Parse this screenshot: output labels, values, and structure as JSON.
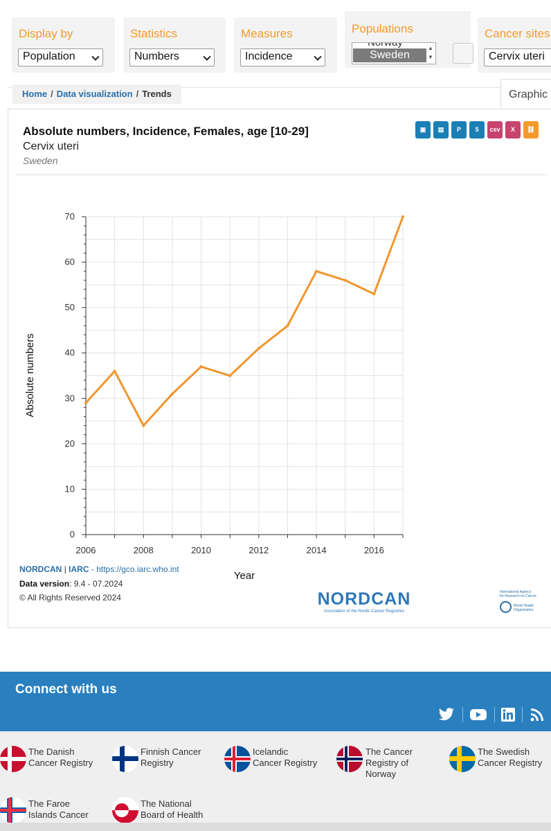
{
  "filters": {
    "display_by": {
      "label": "Display by",
      "value": "Population"
    },
    "statistics": {
      "label": "Statistics",
      "value": "Numbers"
    },
    "measures": {
      "label": "Measures",
      "value": "Incidence"
    },
    "populations": {
      "label": "Populations",
      "prev_option": "Norway",
      "selected": "Sweden"
    },
    "cancer_sites": {
      "label": "Cancer sites",
      "value": "Cervix uteri"
    }
  },
  "breadcrumb": {
    "home": "Home",
    "data_visualization": "Data visualization",
    "current": "Trends",
    "separator": "/"
  },
  "tab": {
    "label": "Graphic"
  },
  "export_icons": [
    {
      "name": "png-export-icon",
      "glyph": "▣",
      "color": "#1a7fb5"
    },
    {
      "name": "pdf-export-icon",
      "glyph": "▤",
      "color": "#1a7fb5"
    },
    {
      "name": "ppt-export-icon",
      "glyph": "P",
      "color": "#1a7fb5"
    },
    {
      "name": "html5-export-icon",
      "glyph": "5",
      "color": "#1a7fb5"
    },
    {
      "name": "csv-export-icon",
      "glyph": "csv",
      "color": "#c8446e"
    },
    {
      "name": "excel-export-icon",
      "glyph": "X",
      "color": "#c8446e"
    },
    {
      "name": "share-link-icon",
      "glyph": "⛓",
      "color": "#f39a2b"
    }
  ],
  "chart_data": {
    "type": "line",
    "title": "Absolute numbers, Incidence, Females, age [10-29]",
    "subtitle": "Cervix uteri",
    "population": "Sweden",
    "xlabel": "Year",
    "ylabel": "Absolute numbers",
    "xlim": [
      2006,
      2017
    ],
    "ylim": [
      0,
      70
    ],
    "x_ticks": [
      2006,
      2008,
      2010,
      2012,
      2014,
      2016
    ],
    "y_ticks": [
      0,
      10,
      20,
      30,
      40,
      50,
      60,
      70
    ],
    "grid": true,
    "legend": "none",
    "series": [
      {
        "color": "#f0962e",
        "x": [
          2006,
          2007,
          2008,
          2009,
          2010,
          2011,
          2012,
          2013,
          2014,
          2015,
          2016,
          2017
        ],
        "values": [
          29,
          36,
          24,
          31,
          37,
          35,
          41,
          46,
          58,
          56,
          53,
          70
        ]
      }
    ]
  },
  "credits": {
    "source_name": "NORDCAN",
    "separator": "|",
    "iarc": "IARC",
    "url_prefix": "-",
    "url": "https://gco.iarc.who.int",
    "version_label": "Data version",
    "version_value": ": 9.4 - 07.2024",
    "rights": "© All Rights Reserved 2024"
  },
  "logos": {
    "nordcan_main": "NORDCAN",
    "nordcan_tagline": "Association of the Nordic Cancer Registries",
    "iarc_line1": "International Agency",
    "iarc_line2": "for Research on Cancer",
    "who_line1": "World Health",
    "who_line2": "Organization"
  },
  "footer": {
    "connect_title": "Connect with us",
    "social": [
      "twitter-icon",
      "youtube-icon",
      "linkedin-icon",
      "rss-icon"
    ],
    "registries": [
      {
        "name": "danish",
        "line1": "The Danish",
        "line2": "Cancer Registry",
        "line3": ""
      },
      {
        "name": "finnish",
        "line1": "Finnish Cancer",
        "line2": "Registry",
        "line3": ""
      },
      {
        "name": "icelandic",
        "line1": "Icelandic",
        "line2": "Cancer Registry",
        "line3": ""
      },
      {
        "name": "norway",
        "line1": "The Cancer",
        "line2": "Registry of",
        "line3": "Norway"
      },
      {
        "name": "swedish",
        "line1": "The Swedish",
        "line2": "Cancer Registry",
        "line3": ""
      },
      {
        "name": "faroe",
        "line1": "The Faroe",
        "line2": "Islands Cancer",
        "line3": ""
      },
      {
        "name": "greenland",
        "line1": "The National",
        "line2": "Board of Health",
        "line3": ""
      }
    ]
  }
}
